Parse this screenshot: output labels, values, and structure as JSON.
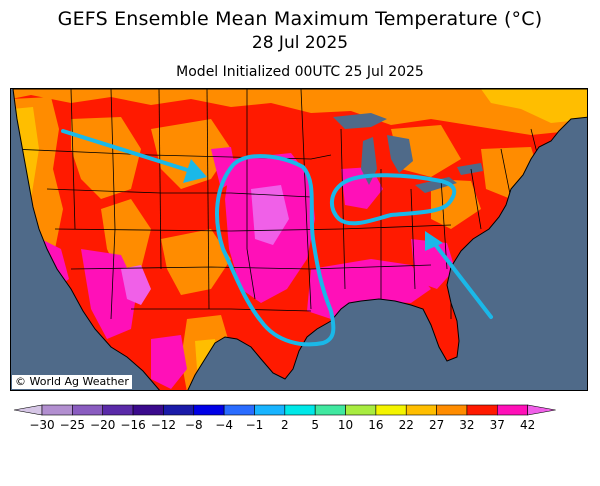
{
  "header": {
    "title": "GEFS Ensemble Mean Maximum Temperature (°C)",
    "date": "28 Jul 2025",
    "init": "Model Initialized 00UTC 25 Jul 2025"
  },
  "map": {
    "credit": "© World Ag Weather",
    "ocean_color": "#4f6a89",
    "land_base_color": "#ff0000",
    "annotation_color": "#1ab8e8",
    "annotations": [
      {
        "name": "plains-heat-outline",
        "kind": "loop"
      },
      {
        "name": "midwest-heat-outline",
        "kind": "loop"
      },
      {
        "name": "northwest-arrow",
        "kind": "arrow"
      },
      {
        "name": "southeast-arrow",
        "kind": "arrow"
      }
    ]
  },
  "legend": {
    "ticks": [
      "-30",
      "-25",
      "-20",
      "-16",
      "-12",
      "-8",
      "-4",
      "-1",
      "2",
      "5",
      "10",
      "16",
      "22",
      "27",
      "32",
      "37",
      "42"
    ],
    "colors": [
      "#d6c6e6",
      "#b28fd0",
      "#8a5cc0",
      "#5a2aa8",
      "#3a0a8c",
      "#1a1aa8",
      "#0000e6",
      "#2a6cff",
      "#18b4ff",
      "#00e8e8",
      "#40e8a0",
      "#a8ec40",
      "#f4f400",
      "#ffbe00",
      "#ff8c00",
      "#ff1a00",
      "#ff10b8",
      "#f060e8"
    ]
  }
}
